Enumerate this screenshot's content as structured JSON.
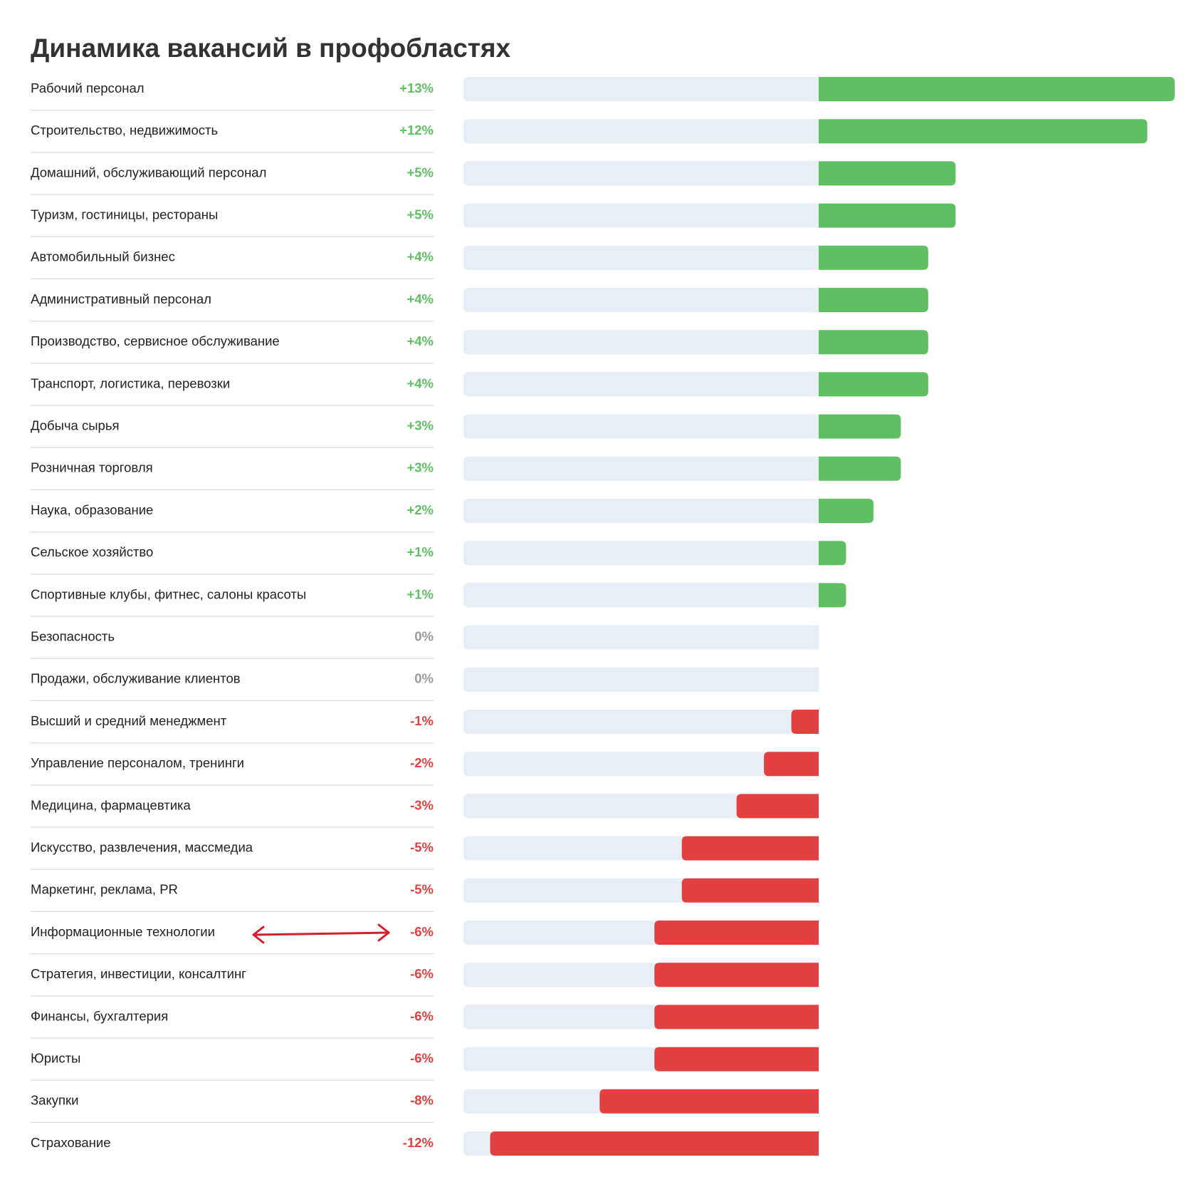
{
  "chart_data": {
    "type": "bar",
    "orientation": "horizontal",
    "title": "Динамика вакансий в профобластях",
    "categories": [
      "Рабочий персонал",
      "Строительство, недвижимость",
      "Домашний, обслуживающий персонал",
      "Туризм, гостиницы, рестораны",
      "Автомобильный бизнес",
      "Административный персонал",
      "Производство, сервисное обслуживание",
      "Транспорт, логистика, перевозки",
      "Добыча сырья",
      "Розничная торговля",
      "Наука, образование",
      "Сельское хозяйство",
      "Спортивные клубы, фитнес, салоны красоты",
      "Безопасность",
      "Продажи, обслуживание клиентов",
      "Высший и средний менеджмент",
      "Управление персоналом, тренинги",
      "Медицина, фармацевтика",
      "Искусство, развлечения, массмедиа",
      "Маркетинг, реклама, PR",
      "Информационные технологии",
      "Стратегия, инвестиции, консалтинг",
      "Финансы, бухгалтерия",
      "Юристы",
      "Закупки",
      "Страхование"
    ],
    "values": [
      13,
      12,
      5,
      5,
      4,
      4,
      4,
      4,
      3,
      3,
      2,
      1,
      1,
      0,
      0,
      -1,
      -2,
      -3,
      -5,
      -5,
      -6,
      -6,
      -6,
      -6,
      -8,
      -12
    ],
    "value_labels": [
      "+13%",
      "+12%",
      "+5%",
      "+5%",
      "+4%",
      "+4%",
      "+4%",
      "+4%",
      "+3%",
      "+3%",
      "+2%",
      "+1%",
      "+1%",
      "0%",
      "0%",
      "-1%",
      "-2%",
      "-3%",
      "-5%",
      "-5%",
      "-6%",
      "-6%",
      "-6%",
      "-6%",
      "-8%",
      "-12%"
    ],
    "positive_color": "#5fbf63",
    "negative_color": "#e34141",
    "zero_color": "#9a9a9a"
  }
}
